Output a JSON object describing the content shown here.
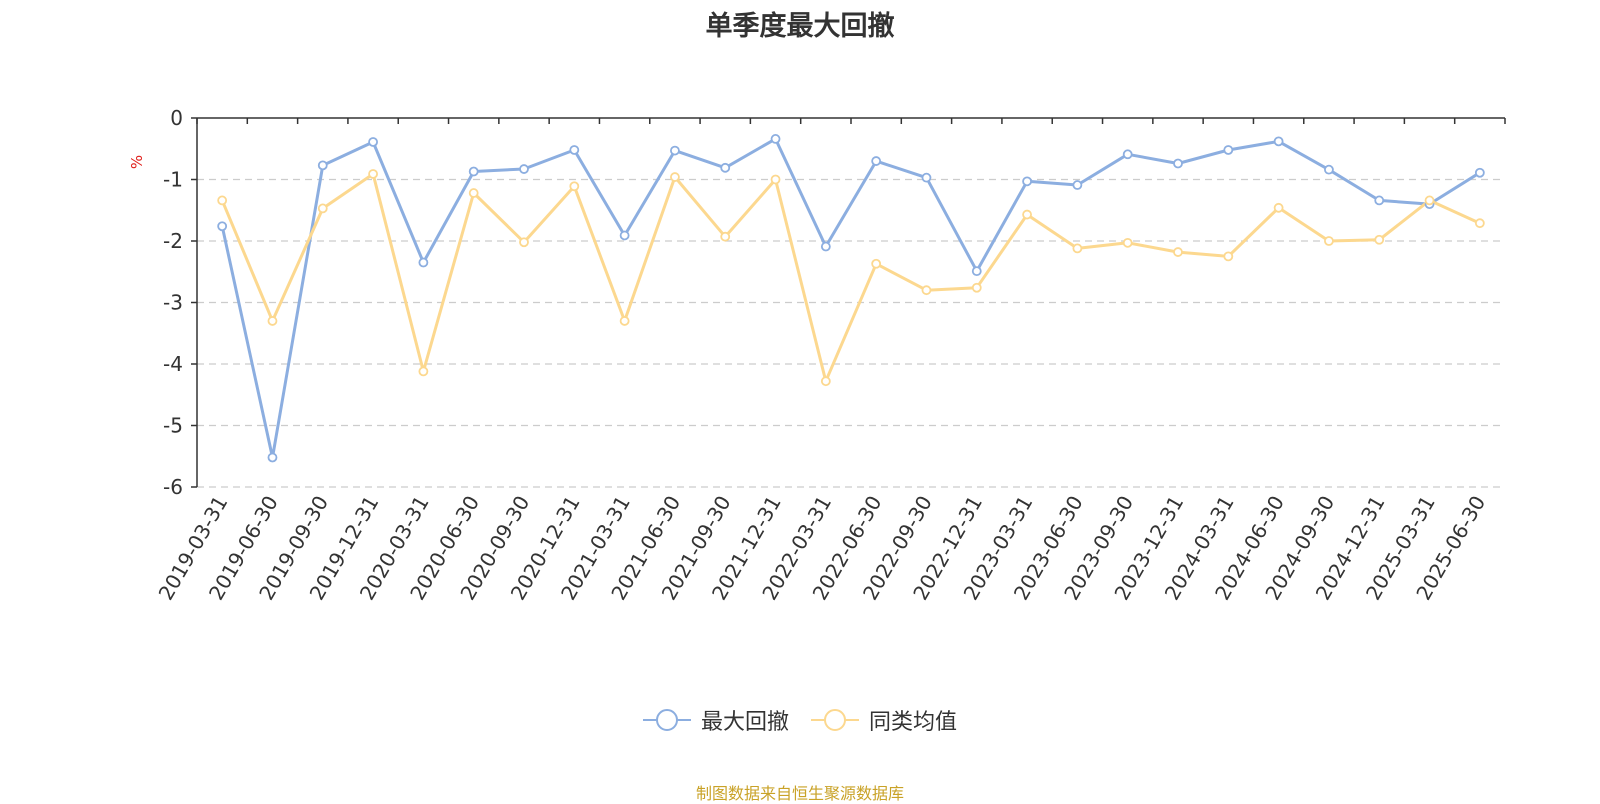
{
  "chart_data": {
    "type": "line",
    "title": "单季度最大回撤",
    "ylabel": "%",
    "ylim": [
      -6,
      0
    ],
    "yticks": [
      "0",
      "-1",
      "-2",
      "-3",
      "-4",
      "-5",
      "-6"
    ],
    "grid": true,
    "legend_position": "bottom-center",
    "categories": [
      "2019-03-31",
      "2019-06-30",
      "2019-09-30",
      "2019-12-31",
      "2020-03-31",
      "2020-06-30",
      "2020-09-30",
      "2020-12-31",
      "2021-03-31",
      "2021-06-30",
      "2021-09-30",
      "2021-12-31",
      "2022-03-31",
      "2022-06-30",
      "2022-09-30",
      "2022-12-31",
      "2023-03-31",
      "2023-06-30",
      "2023-09-30",
      "2023-12-31",
      "2024-03-31",
      "2024-06-30",
      "2024-09-30",
      "2024-12-31",
      "2025-03-31",
      "2025-06-30"
    ],
    "series": [
      {
        "name": "最大回撤",
        "color": "#8caee0",
        "values": [
          -1.76,
          -5.52,
          -0.77,
          -0.39,
          -2.35,
          -0.87,
          -0.83,
          -0.52,
          -1.91,
          -0.53,
          -0.81,
          -0.34,
          -2.09,
          -0.7,
          -0.97,
          -2.49,
          -1.03,
          -1.09,
          -0.59,
          -0.74,
          -0.52,
          -0.38,
          -0.84,
          -1.34,
          -1.4,
          -0.89
        ]
      },
      {
        "name": "同类均值",
        "color": "#fcd88f",
        "values": [
          -1.34,
          -3.3,
          -1.47,
          -0.91,
          -4.12,
          -1.22,
          -2.02,
          -1.11,
          -3.3,
          -0.96,
          -1.93,
          -1.0,
          -4.28,
          -2.37,
          -2.8,
          -2.76,
          -1.57,
          -2.12,
          -2.03,
          -2.18,
          -2.25,
          -1.46,
          -2.0,
          -1.98,
          -1.34,
          -1.71
        ]
      }
    ],
    "source_note": "制图数据来自恒生聚源数据库"
  }
}
